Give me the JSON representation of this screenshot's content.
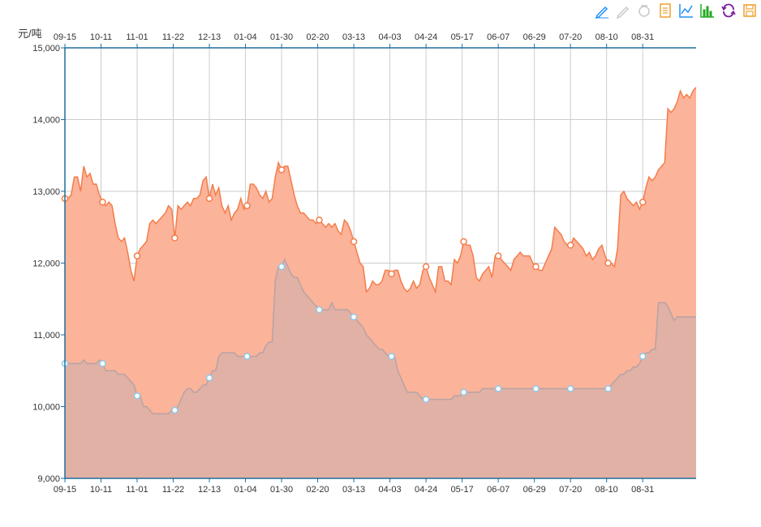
{
  "toolbar": [
    {
      "name": "mark-pen-icon",
      "color": "#1e90ff"
    },
    {
      "name": "mark-undo-icon",
      "color": "#c8c8c8"
    },
    {
      "name": "mark-clear-icon",
      "color": "#c8c8c8"
    },
    {
      "name": "data-view-icon",
      "color": "#f0a030"
    },
    {
      "name": "line-chart-icon",
      "color": "#1e90ff"
    },
    {
      "name": "bar-chart-icon",
      "color": "#22aa22"
    },
    {
      "name": "restore-icon",
      "color": "#7a1fa2"
    },
    {
      "name": "save-image-icon",
      "color": "#f0a030"
    }
  ],
  "chart_data": {
    "type": "area",
    "ylabel": "元/吨",
    "ylim": [
      9000,
      15000
    ],
    "yticks": [
      "9,000",
      "10,000",
      "11,000",
      "12,000",
      "13,000",
      "14,000",
      "15,000"
    ],
    "xticks": [
      "09-15",
      "10-11",
      "11-01",
      "11-22",
      "12-13",
      "01-04",
      "01-30",
      "02-20",
      "03-13",
      "04-03",
      "04-24",
      "05-17",
      "06-07",
      "06-29",
      "07-20",
      "08-10",
      "08-31"
    ],
    "grid": true,
    "x_axis_position": "top and bottom",
    "series": [
      {
        "color": "#f47d4a",
        "fill": "#fbb39a",
        "values": [
          12900,
          12900,
          12950,
          13200,
          13200,
          13000,
          13350,
          13200,
          13250,
          13100,
          13100,
          12950,
          12850,
          12800,
          12850,
          12800,
          12550,
          12350,
          12300,
          12350,
          12150,
          11900,
          11750,
          12100,
          12200,
          12250,
          12300,
          12550,
          12600,
          12550,
          12600,
          12650,
          12700,
          12800,
          12750,
          12350,
          12800,
          12750,
          12800,
          12850,
          12800,
          12900,
          12900,
          12950,
          13150,
          13200,
          12900,
          13100,
          12950,
          13050,
          12800,
          12700,
          12800,
          12600,
          12700,
          12750,
          12900,
          12750,
          12800,
          13100,
          13100,
          13050,
          12950,
          12900,
          13000,
          12850,
          12900,
          13200,
          13400,
          13300,
          13350,
          13350,
          13150,
          12950,
          12800,
          12700,
          12700,
          12650,
          12600,
          12600,
          12550,
          12600,
          12550,
          12500,
          12550,
          12500,
          12550,
          12450,
          12400,
          12600,
          12550,
          12450,
          12300,
          12150,
          12000,
          11950,
          11600,
          11650,
          11750,
          11700,
          11700,
          11750,
          11900,
          11900,
          11850,
          11900,
          11900,
          11750,
          11650,
          11600,
          11650,
          11750,
          11650,
          11700,
          11900,
          11950,
          11800,
          11700,
          11600,
          11950,
          11950,
          11750,
          11750,
          11700,
          12050,
          12000,
          12100,
          12300,
          12250,
          12250,
          12100,
          11800,
          11750,
          11850,
          11900,
          11950,
          11800,
          12100,
          12100,
          12050,
          12000,
          11950,
          11900,
          12050,
          12100,
          12150,
          12100,
          12100,
          12100,
          12000,
          11950,
          11900,
          11900,
          12000,
          12100,
          12200,
          12500,
          12450,
          12400,
          12300,
          12250,
          12250,
          12350,
          12300,
          12250,
          12200,
          12100,
          12150,
          12050,
          12100,
          12200,
          12250,
          12100,
          12000,
          12000,
          11950,
          12200,
          12950,
          13000,
          12900,
          12850,
          12800,
          12850,
          12750,
          12850,
          13050,
          13200,
          13150,
          13200,
          13300,
          13350,
          13400,
          14150,
          14100,
          14150,
          14250,
          14400,
          14300,
          14350,
          14300,
          14400,
          14450
        ]
      },
      {
        "color": "#b7a3a3",
        "fill": "#dcb0a8",
        "values": [
          10600,
          10600,
          10600,
          10600,
          10600,
          10600,
          10650,
          10600,
          10600,
          10600,
          10600,
          10650,
          10600,
          10500,
          10500,
          10500,
          10500,
          10450,
          10450,
          10450,
          10400,
          10350,
          10300,
          10150,
          10150,
          10000,
          10000,
          9950,
          9900,
          9900,
          9900,
          9900,
          9900,
          9900,
          9950,
          9950,
          10000,
          10100,
          10200,
          10250,
          10250,
          10200,
          10200,
          10250,
          10300,
          10300,
          10400,
          10500,
          10500,
          10700,
          10750,
          10750,
          10750,
          10750,
          10750,
          10700,
          10700,
          10700,
          10700,
          10700,
          10700,
          10700,
          10750,
          10750,
          10850,
          10900,
          10900,
          11750,
          11950,
          11950,
          12050,
          11950,
          11850,
          11800,
          11800,
          11700,
          11600,
          11550,
          11500,
          11450,
          11400,
          11350,
          11350,
          11350,
          11350,
          11450,
          11350,
          11350,
          11350,
          11350,
          11350,
          11300,
          11250,
          11200,
          11150,
          11100,
          11000,
          10950,
          10900,
          10850,
          10800,
          10800,
          10750,
          10700,
          10700,
          10700,
          10500,
          10400,
          10300,
          10200,
          10200,
          10200,
          10200,
          10150,
          10100,
          10100,
          10100,
          10100,
          10100,
          10100,
          10100,
          10100,
          10100,
          10100,
          10150,
          10150,
          10150,
          10200,
          10200,
          10200,
          10200,
          10200,
          10200,
          10250,
          10250,
          10250,
          10250,
          10250,
          10250,
          10250,
          10250,
          10250,
          10250,
          10250,
          10250,
          10250,
          10250,
          10250,
          10250,
          10250,
          10250,
          10250,
          10250,
          10250,
          10250,
          10250,
          10250,
          10250,
          10250,
          10250,
          10250,
          10250,
          10250,
          10250,
          10250,
          10250,
          10250,
          10250,
          10250,
          10250,
          10250,
          10250,
          10250,
          10250,
          10300,
          10350,
          10400,
          10450,
          10450,
          10500,
          10500,
          10550,
          10550,
          10600,
          10700,
          10750,
          10750,
          10800,
          10800,
          11450,
          11450,
          11450,
          11400,
          11300,
          11200,
          11250,
          11250,
          11250,
          11250,
          11250,
          11250,
          11250
        ]
      }
    ]
  }
}
